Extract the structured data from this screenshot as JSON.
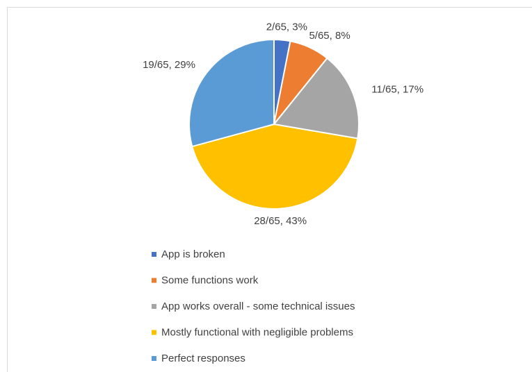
{
  "chart_data": {
    "type": "pie",
    "categories": [
      "App is broken",
      "Some functions work",
      "App works overall - some technical issues",
      "Mostly functional with negligible problems",
      "Perfect responses"
    ],
    "values": [
      2,
      5,
      11,
      28,
      19
    ],
    "value_labels": [
      "2/65, 3%",
      "5/65, 8%",
      "11/65, 17%",
      "28/65, 43%",
      "19/65, 29%"
    ],
    "colors": [
      "#4472c4",
      "#ed7d31",
      "#a5a5a5",
      "#ffc000",
      "#5b9bd5"
    ],
    "legend": "bottom"
  }
}
